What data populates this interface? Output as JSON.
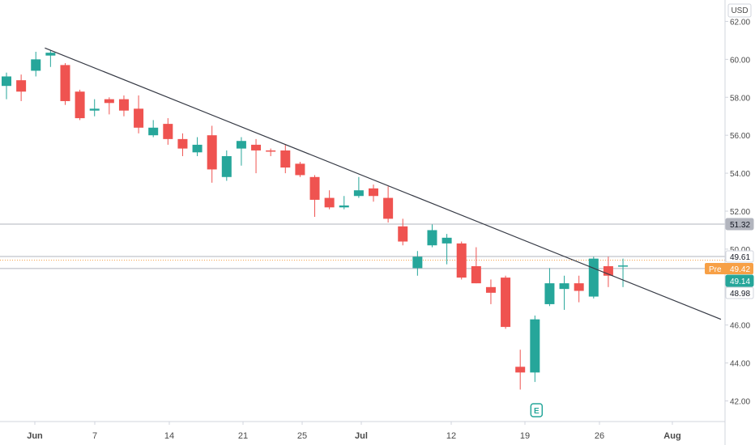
{
  "chart_data": {
    "type": "candlestick",
    "currency": "USD",
    "y_axis": {
      "ylim": [
        41.0,
        63.0
      ],
      "ticks": [
        "62.00",
        "60.00",
        "58.00",
        "56.00",
        "54.00",
        "52.00",
        "50.00",
        "48.00",
        "46.00",
        "44.00",
        "42.00"
      ]
    },
    "x_axis": {
      "ticks": [
        {
          "label": "Jun",
          "bold": true
        },
        {
          "label": "7",
          "bold": false
        },
        {
          "label": "14",
          "bold": false
        },
        {
          "label": "21",
          "bold": false
        },
        {
          "label": "25",
          "bold": false
        },
        {
          "label": "Jul",
          "bold": true
        },
        {
          "label": "12",
          "bold": false
        },
        {
          "label": "19",
          "bold": false
        },
        {
          "label": "26",
          "bold": false
        },
        {
          "label": "Aug",
          "bold": true
        }
      ]
    },
    "candles": [
      {
        "date": "May 27",
        "open": 58.6,
        "high": 59.3,
        "low": 57.9,
        "close": 59.1
      },
      {
        "date": "May 28",
        "open": 58.9,
        "high": 59.2,
        "low": 57.8,
        "close": 58.3
      },
      {
        "date": "May 31",
        "open": 59.4,
        "high": 60.4,
        "low": 59.1,
        "close": 60.0
      },
      {
        "date": "Jun 1",
        "open": 60.2,
        "high": 60.5,
        "low": 59.6,
        "close": 60.35
      },
      {
        "date": "Jun 2",
        "open": 59.7,
        "high": 59.8,
        "low": 57.6,
        "close": 57.8
      },
      {
        "date": "Jun 3",
        "open": 58.3,
        "high": 58.4,
        "low": 56.8,
        "close": 56.9
      },
      {
        "date": "Jun 4",
        "open": 57.3,
        "high": 57.9,
        "low": 57.0,
        "close": 57.4
      },
      {
        "date": "Jun 7",
        "open": 57.9,
        "high": 58.0,
        "low": 57.1,
        "close": 57.7
      },
      {
        "date": "Jun 8",
        "open": 57.9,
        "high": 58.1,
        "low": 57.0,
        "close": 57.3
      },
      {
        "date": "Jun 9",
        "open": 57.4,
        "high": 58.1,
        "low": 56.1,
        "close": 56.4
      },
      {
        "date": "Jun 10",
        "open": 56.0,
        "high": 56.8,
        "low": 55.9,
        "close": 56.4
      },
      {
        "date": "Jun 11",
        "open": 56.6,
        "high": 56.9,
        "low": 55.5,
        "close": 55.8
      },
      {
        "date": "Jun 14",
        "open": 55.8,
        "high": 56.1,
        "low": 54.9,
        "close": 55.3
      },
      {
        "date": "Jun 15",
        "open": 55.1,
        "high": 55.9,
        "low": 54.9,
        "close": 55.5
      },
      {
        "date": "Jun 16",
        "open": 56.0,
        "high": 56.5,
        "low": 53.5,
        "close": 54.2
      },
      {
        "date": "Jun 17",
        "open": 53.8,
        "high": 55.2,
        "low": 53.6,
        "close": 54.9
      },
      {
        "date": "Jun 18",
        "open": 55.3,
        "high": 55.9,
        "low": 54.4,
        "close": 55.7
      },
      {
        "date": "Jun 21",
        "open": 55.5,
        "high": 55.8,
        "low": 54.0,
        "close": 55.2
      },
      {
        "date": "Jun 22",
        "open": 55.2,
        "high": 55.3,
        "low": 54.9,
        "close": 55.15
      },
      {
        "date": "Jun 23",
        "open": 55.2,
        "high": 55.5,
        "low": 54.0,
        "close": 54.3
      },
      {
        "date": "Jun 24",
        "open": 54.5,
        "high": 54.6,
        "low": 53.8,
        "close": 53.9
      },
      {
        "date": "Jun 25",
        "open": 53.8,
        "high": 53.9,
        "low": 51.7,
        "close": 52.6
      },
      {
        "date": "Jun 28",
        "open": 52.7,
        "high": 53.1,
        "low": 52.1,
        "close": 52.2
      },
      {
        "date": "Jun 29",
        "open": 52.2,
        "high": 52.8,
        "low": 52.1,
        "close": 52.3
      },
      {
        "date": "Jun 30",
        "open": 52.8,
        "high": 53.8,
        "low": 52.7,
        "close": 53.1
      },
      {
        "date": "Jul 1",
        "open": 53.2,
        "high": 53.4,
        "low": 52.5,
        "close": 52.8
      },
      {
        "date": "Jul 2",
        "open": 52.7,
        "high": 53.3,
        "low": 51.4,
        "close": 51.6
      },
      {
        "date": "Jul 6",
        "open": 51.2,
        "high": 51.6,
        "low": 50.2,
        "close": 50.4
      },
      {
        "date": "Jul 7",
        "open": 49.0,
        "high": 49.9,
        "low": 48.6,
        "close": 49.6
      },
      {
        "date": "Jul 8",
        "open": 50.2,
        "high": 51.3,
        "low": 50.1,
        "close": 51.0
      },
      {
        "date": "Jul 9",
        "open": 50.3,
        "high": 50.8,
        "low": 49.2,
        "close": 50.6
      },
      {
        "date": "Jul 12",
        "open": 50.3,
        "high": 50.4,
        "low": 48.4,
        "close": 48.5
      },
      {
        "date": "Jul 13",
        "open": 49.1,
        "high": 50.1,
        "low": 48.2,
        "close": 48.2
      },
      {
        "date": "Jul 14",
        "open": 48.0,
        "high": 48.4,
        "low": 47.1,
        "close": 47.7
      },
      {
        "date": "Jul 15",
        "open": 48.5,
        "high": 48.6,
        "low": 45.8,
        "close": 45.9
      },
      {
        "date": "Jul 16",
        "open": 43.8,
        "high": 44.7,
        "low": 42.6,
        "close": 43.5
      },
      {
        "date": "Jul 19",
        "open": 43.5,
        "high": 46.5,
        "low": 43.0,
        "close": 46.3
      },
      {
        "date": "Jul 20",
        "open": 47.1,
        "high": 49.0,
        "low": 47.0,
        "close": 48.2
      },
      {
        "date": "Jul 21",
        "open": 47.9,
        "high": 48.6,
        "low": 46.8,
        "close": 48.2
      },
      {
        "date": "Jul 22",
        "open": 48.2,
        "high": 48.6,
        "low": 47.2,
        "close": 47.8
      },
      {
        "date": "Jul 23",
        "open": 47.5,
        "high": 49.6,
        "low": 47.4,
        "close": 49.5
      },
      {
        "date": "Jul 26",
        "open": 49.1,
        "high": 49.6,
        "low": 48.0,
        "close": 48.6
      },
      {
        "date": "Jul 27",
        "open": 49.1,
        "high": 49.5,
        "low": 48.0,
        "close": 49.14
      }
    ],
    "trendline": {
      "start": {
        "date": "Jun 1",
        "price": 60.6
      },
      "end_price_at_axis": 46.3
    },
    "horizontal_lines": [
      {
        "price": 51.32,
        "color": "#b2b5be"
      },
      {
        "price": 49.61,
        "color": "#b2b5be"
      },
      {
        "price": 48.98,
        "color": "#b2b5be"
      }
    ],
    "premarket_line": {
      "price": 49.42,
      "color": "#f7a046"
    },
    "price_labels": [
      {
        "text": "51.32",
        "price": 51.32,
        "bg": "#b2b5be",
        "fg": "#131722"
      },
      {
        "text": "49.61",
        "price": 49.61,
        "bg": "#ffffff",
        "fg": "#131722"
      },
      {
        "text": "49.42",
        "prefix": "Pre",
        "price": 49.42,
        "bg": "#f7a046",
        "fg": "#ffffff"
      },
      {
        "text": "49.14",
        "price": 49.14,
        "bg": "#26a69a",
        "fg": "#ffffff"
      },
      {
        "text": "48.98",
        "price": 48.98,
        "bg": "#ffffff",
        "fg": "#131722"
      }
    ],
    "earnings_marker": {
      "label": "E",
      "date": "Jul 19"
    },
    "colors": {
      "up": "#26a69a",
      "down": "#ef5350",
      "trendline": "#363a45",
      "axis_text": "#4a4a4a",
      "axis_line": "#d1d4dc"
    }
  }
}
